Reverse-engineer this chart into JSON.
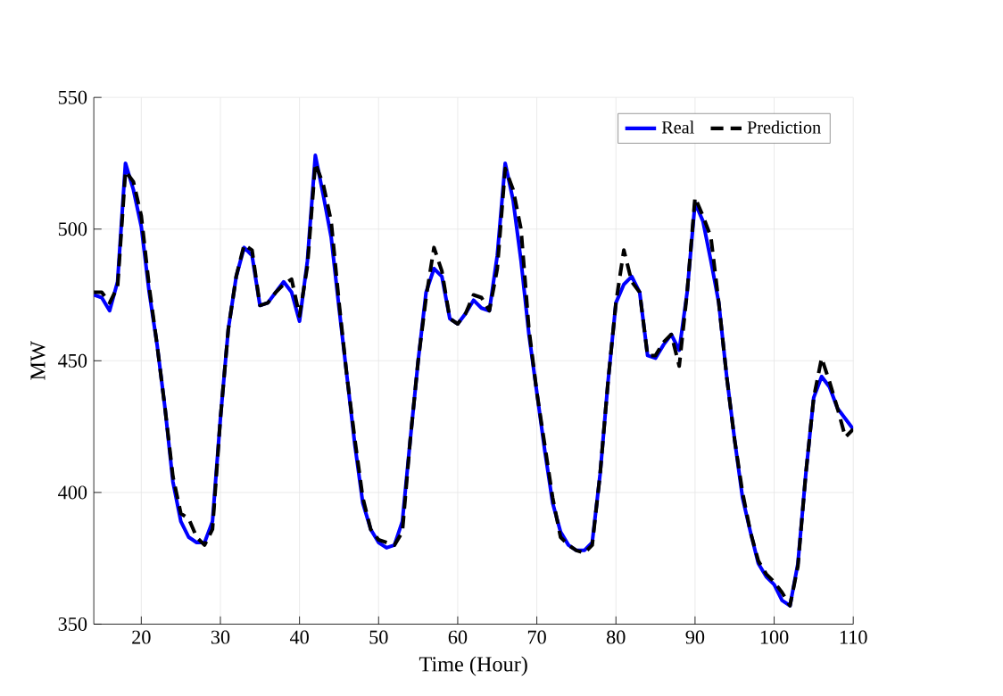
{
  "chart_data": {
    "type": "line",
    "xlabel": "Time (Hour)",
    "ylabel": "MW",
    "x": [
      14,
      15,
      16,
      17,
      18,
      19,
      20,
      21,
      22,
      23,
      24,
      25,
      26,
      27,
      28,
      29,
      30,
      31,
      32,
      33,
      34,
      35,
      36,
      37,
      38,
      39,
      40,
      41,
      42,
      43,
      44,
      45,
      46,
      47,
      48,
      49,
      50,
      51,
      52,
      53,
      54,
      55,
      56,
      57,
      58,
      59,
      60,
      61,
      62,
      63,
      64,
      65,
      66,
      67,
      68,
      69,
      70,
      71,
      72,
      73,
      74,
      75,
      76,
      77,
      78,
      79,
      80,
      81,
      82,
      83,
      84,
      85,
      86,
      87,
      88,
      89,
      90,
      91,
      92,
      93,
      94,
      95,
      96,
      97,
      98,
      99,
      100,
      101,
      102,
      103,
      104,
      105,
      106,
      107,
      108,
      109,
      110
    ],
    "series": [
      {
        "name": "Real",
        "color": "#0000ff",
        "line_style": "solid",
        "values": [
          475,
          474,
          469,
          480,
          525,
          515,
          501,
          476,
          456,
          432,
          404,
          389,
          383,
          381,
          381,
          389,
          428,
          462,
          482,
          493,
          490,
          471,
          472,
          476,
          480,
          476,
          465,
          488,
          528,
          513,
          497,
          470,
          444,
          418,
          396,
          386,
          381,
          379,
          380,
          389,
          420,
          450,
          476,
          485,
          482,
          466,
          464,
          468,
          473,
          470,
          469,
          490,
          525,
          511,
          488,
          460,
          438,
          416,
          396,
          385,
          380,
          378,
          378,
          381,
          407,
          442,
          472,
          479,
          482,
          476,
          452,
          451,
          456,
          460,
          454,
          476,
          510,
          503,
          488,
          472,
          444,
          420,
          398,
          385,
          373,
          368,
          365,
          359,
          357,
          373,
          407,
          436,
          444,
          440,
          432,
          428,
          424
        ]
      },
      {
        "name": "Prediction",
        "color": "#000000",
        "line_style": "dashed",
        "values": [
          476,
          476,
          472,
          478,
          522,
          518,
          505,
          478,
          456,
          432,
          406,
          392,
          390,
          383,
          380,
          386,
          428,
          462,
          482,
          494,
          492,
          471,
          472,
          476,
          479,
          481,
          467,
          486,
          525,
          517,
          503,
          472,
          444,
          420,
          398,
          386,
          382,
          381,
          380,
          385,
          420,
          450,
          474,
          493,
          484,
          466,
          464,
          468,
          475,
          474,
          469,
          485,
          523,
          515,
          500,
          462,
          438,
          418,
          398,
          383,
          380,
          378,
          377,
          380,
          407,
          442,
          472,
          492,
          480,
          476,
          452,
          452,
          457,
          460,
          448,
          476,
          512,
          505,
          497,
          472,
          444,
          420,
          400,
          385,
          374,
          369,
          366,
          362,
          357,
          372,
          407,
          436,
          451,
          442,
          432,
          421,
          424
        ]
      }
    ],
    "xlim": [
      14,
      110
    ],
    "xticks": [
      20,
      30,
      40,
      50,
      60,
      70,
      80,
      90,
      100,
      110
    ],
    "ylim": [
      350,
      550
    ],
    "yticks": [
      350,
      400,
      450,
      500,
      550
    ],
    "grid": true,
    "legend": "top right"
  }
}
